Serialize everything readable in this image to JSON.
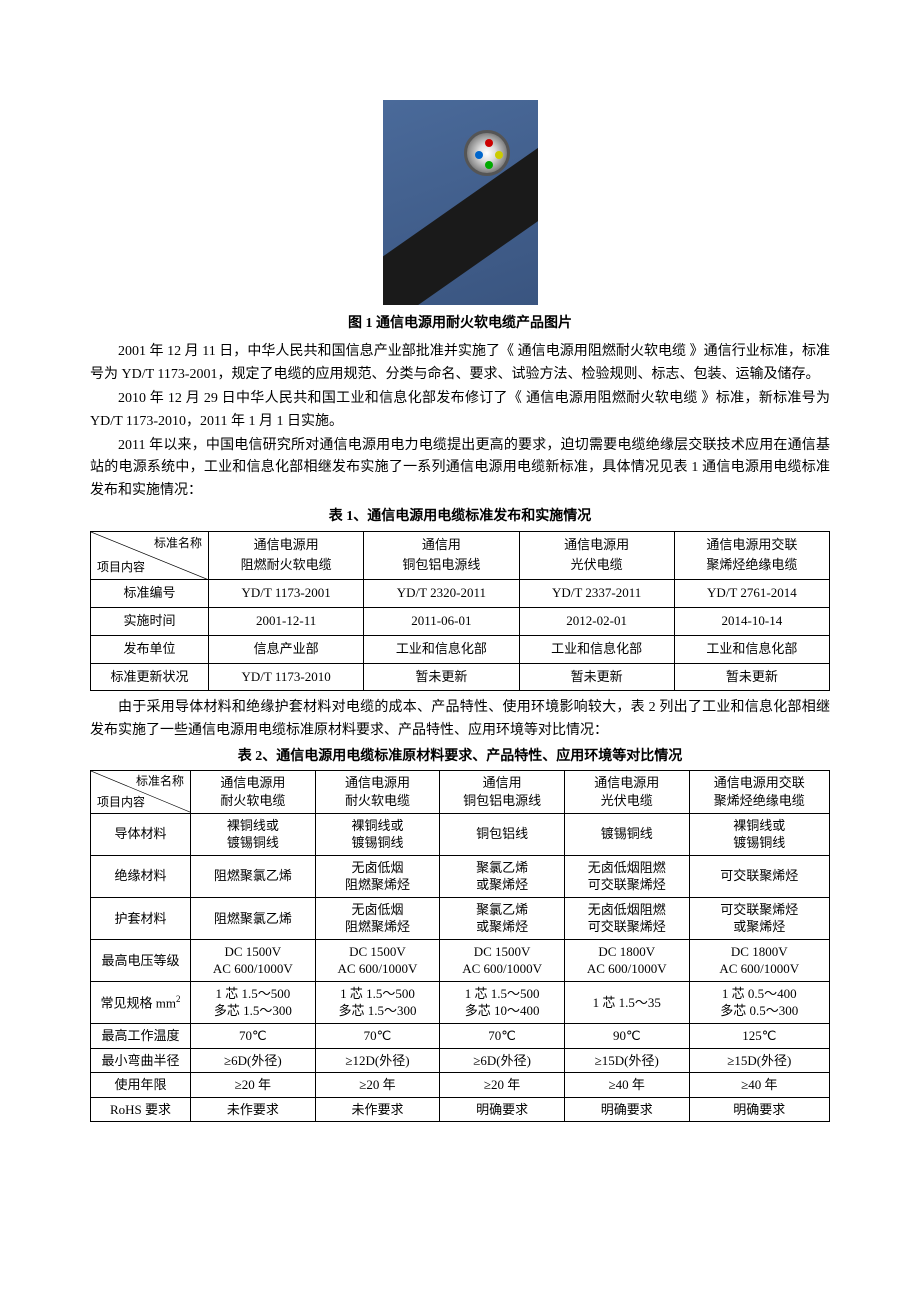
{
  "figure": {
    "caption": "图 1   通信电源用耐火软电缆产品图片"
  },
  "paragraphs": [
    "2001 年 12 月 11 日，中华人民共和国信息产业部批准并实施了《 通信电源用阻燃耐火软电缆 》通信行业标准，标准号为 YD/T 1173-2001，规定了电缆的应用规范、分类与命名、要求、试验方法、检验规则、标志、包装、运输及储存。",
    "2010 年 12 月 29 日中华人民共和国工业和信息化部发布修订了《 通信电源用阻燃耐火软电缆 》标准，新标准号为 YD/T 1173-2010，2011 年 1 月 1 日实施。",
    "2011 年以来，中国电信研究所对通信电源用电力电缆提出更高的要求，迫切需要电缆绝缘层交联技术应用在通信基站的电源系统中，工业和信息化部相继发布实施了一系列通信电源用电缆新标准，具体情况见表 1 通信电源用电缆标准发布和实施情况："
  ],
  "table1": {
    "title": "表 1、通信电源用电缆标准发布和实施情况",
    "diag": {
      "tr": "标准名称",
      "bl": "项目内容"
    },
    "headers": [
      [
        "通信电源用",
        "阻燃耐火软电缆"
      ],
      [
        "通信用",
        "铜包铝电源线"
      ],
      [
        "通信电源用",
        "光伏电缆"
      ],
      [
        "通信电源用交联",
        "聚烯烃绝缘电缆"
      ]
    ],
    "rows": [
      {
        "label": "标准编号",
        "cells": [
          "YD/T 1173-2001",
          "YD/T 2320-2011",
          "YD/T 2337-2011",
          "YD/T 2761-2014"
        ]
      },
      {
        "label": "实施时间",
        "cells": [
          "2001-12-11",
          "2011-06-01",
          "2012-02-01",
          "2014-10-14"
        ]
      },
      {
        "label": "发布单位",
        "cells": [
          "信息产业部",
          "工业和信息化部",
          "工业和信息化部",
          "工业和信息化部"
        ]
      },
      {
        "label": "标准更新状况",
        "cells": [
          "YD/T 1173-2010",
          "暂未更新",
          "暂未更新",
          "暂未更新"
        ]
      }
    ]
  },
  "mid_paragraph": "由于采用导体材料和绝缘护套材料对电缆的成本、产品特性、使用环境影响较大，表 2 列出了工业和信息化部相继发布实施了一些通信电源用电缆标准原材料要求、产品特性、应用环境等对比情况：",
  "table2": {
    "title": "表 2、通信电源用电缆标准原材料要求、产品特性、应用环境等对比情况",
    "diag": {
      "tr": "标准名称",
      "bl": "项目内容"
    },
    "headers": [
      [
        "通信电源用",
        "耐火软电缆"
      ],
      [
        "通信电源用",
        "耐火软电缆"
      ],
      [
        "通信用",
        "铜包铝电源线"
      ],
      [
        "通信电源用",
        "光伏电缆"
      ],
      [
        "通信电源用交联",
        "聚烯烃绝缘电缆"
      ]
    ],
    "rows": [
      {
        "label": "导体材料",
        "cells": [
          "裸铜线或\n镀锡铜线",
          "裸铜线或\n镀锡铜线",
          "铜包铝线",
          "镀锡铜线",
          "裸铜线或\n镀锡铜线"
        ]
      },
      {
        "label": "绝缘材料",
        "cells": [
          "阻燃聚氯乙烯",
          "无卤低烟\n阻燃聚烯烃",
          "聚氯乙烯\n或聚烯烃",
          "无卤低烟阻燃\n可交联聚烯烃",
          "可交联聚烯烃"
        ]
      },
      {
        "label": "护套材料",
        "cells": [
          "阻燃聚氯乙烯",
          "无卤低烟\n阻燃聚烯烃",
          "聚氯乙烯\n或聚烯烃",
          "无卤低烟阻燃\n可交联聚烯烃",
          "可交联聚烯烃\n或聚烯烃"
        ]
      },
      {
        "label": "最高电压等级",
        "cells": [
          "DC 1500V\nAC 600/1000V",
          "DC 1500V\nAC 600/1000V",
          "DC 1500V\nAC 600/1000V",
          "DC 1800V\nAC 600/1000V",
          "DC 1800V\nAC 600/1000V"
        ]
      },
      {
        "label": "常见规格 mm²",
        "cells": [
          "1 芯 1.5～500\n多芯 1.5～300",
          "1 芯 1.5～500\n多芯 1.5～300",
          "1 芯 1.5～500\n多芯 10～400",
          "1 芯 1.5～35",
          "1 芯 0.5～400\n多芯 0.5～300"
        ]
      },
      {
        "label": "最高工作温度",
        "cells": [
          "70℃",
          "70℃",
          "70℃",
          "90℃",
          "125℃"
        ]
      },
      {
        "label": "最小弯曲半径",
        "cells": [
          "≥6D(外径)",
          "≥12D(外径)",
          "≥6D(外径)",
          "≥15D(外径)",
          "≥15D(外径)"
        ]
      },
      {
        "label": "使用年限",
        "cells": [
          "≥20 年",
          "≥20 年",
          "≥20 年",
          "≥40 年",
          "≥40 年"
        ]
      },
      {
        "label": "RoHS 要求",
        "cells": [
          "未作要求",
          "未作要求",
          "明确要求",
          "明确要求",
          "明确要求"
        ]
      }
    ]
  },
  "colors": {
    "text": "#000000",
    "border": "#000000",
    "background": "#ffffff",
    "image_bg": "#4a6a9a"
  }
}
